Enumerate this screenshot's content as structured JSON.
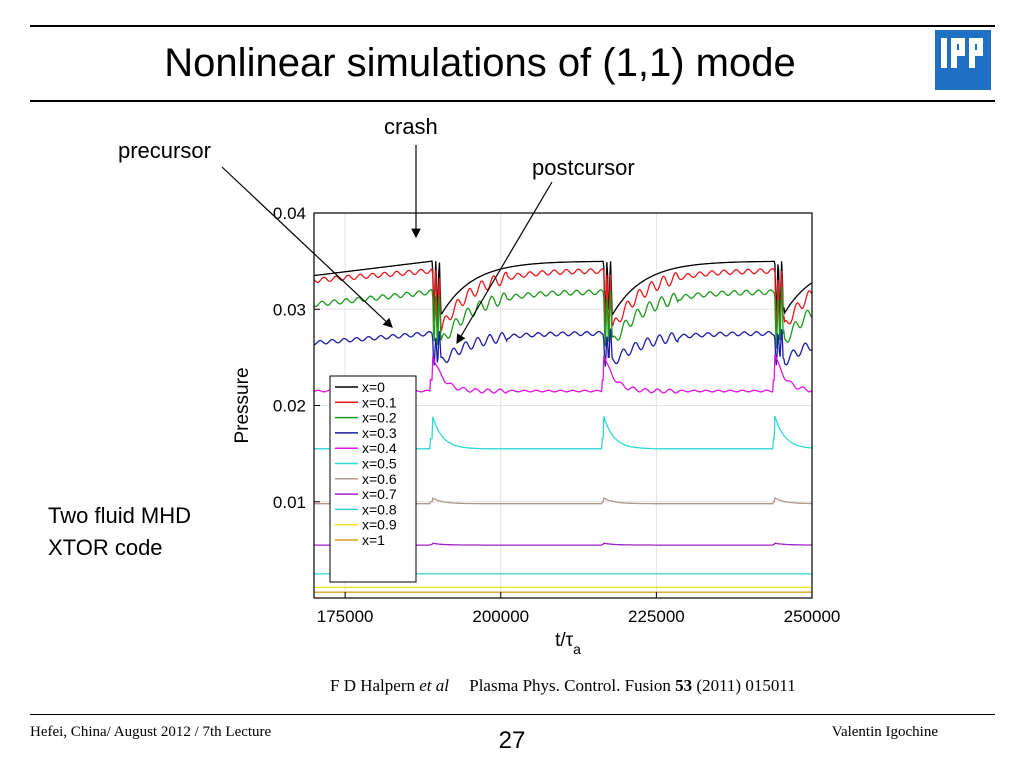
{
  "slide": {
    "title": "Nonlinear simulations of (1,1) mode",
    "logo_text": "IPP",
    "note_line1": "Two fluid MHD",
    "note_line2": "XTOR code",
    "annotations": {
      "precursor": "precursor",
      "crash": "crash",
      "postcursor": "postcursor"
    },
    "citation": {
      "authors": "F D Halpern",
      "etal": "et al",
      "journal": "Plasma Phys. Control. Fusion",
      "volume": "53",
      "rest": "(2011) 015011"
    },
    "footer": {
      "left": "Hefei, China/ August 2012 / 7th Lecture",
      "page": "27",
      "right": "Valentin Igochine"
    }
  },
  "chart_data": {
    "type": "line",
    "xlabel": "t/τa",
    "ylabel": "Pressure",
    "xlim": [
      170000,
      250000
    ],
    "ylim": [
      0.0,
      0.04
    ],
    "x_ticks": [
      175000,
      200000,
      225000,
      250000
    ],
    "y_ticks": [
      0.01,
      0.02,
      0.03,
      0.04
    ],
    "grid": true,
    "legend": "bottom-left",
    "crash_times": [
      189000,
      216500,
      244000
    ],
    "series": [
      {
        "name": "x=0",
        "color": "#000000",
        "base": 0.0335,
        "peak": 0.035,
        "drop": 0.0295,
        "noise": 0.0,
        "spike": 0.0
      },
      {
        "name": "x=0.1",
        "color": "#e8191c",
        "base": 0.033,
        "peak": 0.034,
        "drop": 0.028,
        "noise": 0.0006,
        "spike": 0.0
      },
      {
        "name": "x=0.2",
        "color": "#1a9a1a",
        "base": 0.0305,
        "peak": 0.0318,
        "drop": 0.0265,
        "noise": 0.0006,
        "spike": 0.0
      },
      {
        "name": "x=0.3",
        "color": "#1c1ca8",
        "base": 0.0265,
        "peak": 0.0275,
        "drop": 0.0245,
        "noise": 0.0005,
        "spike": 0.0
      },
      {
        "name": "x=0.4",
        "color": "#e014e0",
        "base": 0.0215,
        "peak": 0.0215,
        "drop": 0.0215,
        "noise": 0.0002,
        "spike": 0.004
      },
      {
        "name": "x=0.5",
        "color": "#30d8d0",
        "base": 0.0155,
        "peak": 0.0155,
        "drop": 0.0155,
        "noise": 0.0,
        "spike": 0.0035
      },
      {
        "name": "x=0.6",
        "color": "#b09890",
        "base": 0.0098,
        "peak": 0.0098,
        "drop": 0.0098,
        "noise": 0.0,
        "spike": 0.0006
      },
      {
        "name": "x=0.7",
        "color": "#a020c8",
        "base": 0.0055,
        "peak": 0.0055,
        "drop": 0.0055,
        "noise": 0.0,
        "spike": 0.0002
      },
      {
        "name": "x=0.8",
        "color": "#30d0d8",
        "base": 0.0025,
        "peak": 0.0025,
        "drop": 0.0025,
        "noise": 0.0,
        "spike": 0.0
      },
      {
        "name": "x=0.9",
        "color": "#f0e020",
        "base": 0.0011,
        "peak": 0.0011,
        "drop": 0.0011,
        "noise": 0.0,
        "spike": 0.0
      },
      {
        "name": "x=1",
        "color": "#d8a020",
        "base": 0.0006,
        "peak": 0.0006,
        "drop": 0.0006,
        "noise": 0.0,
        "spike": 0.0
      }
    ]
  }
}
